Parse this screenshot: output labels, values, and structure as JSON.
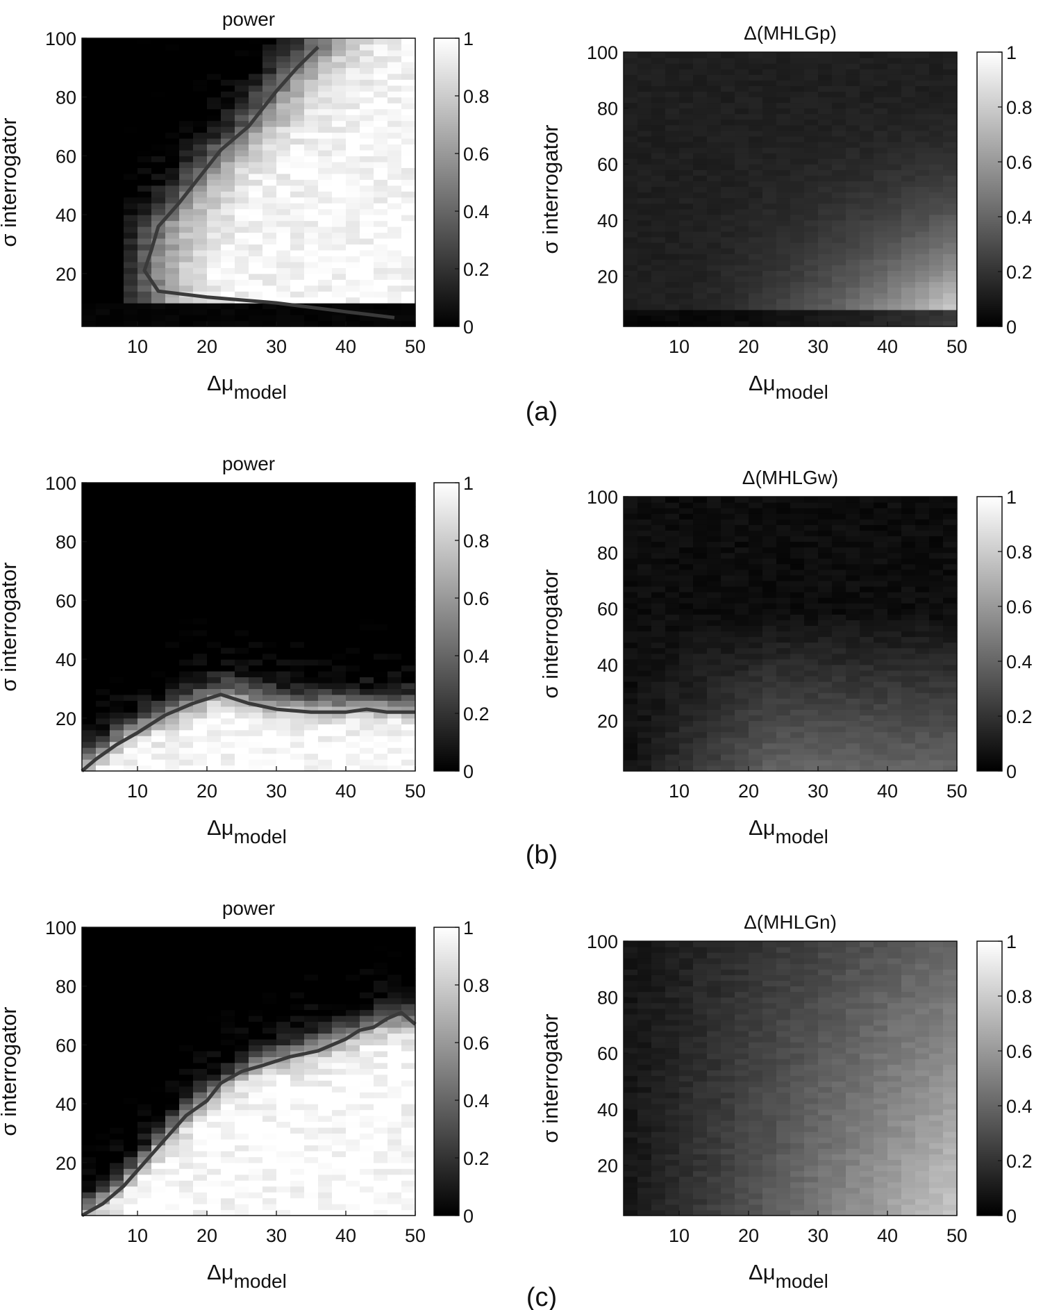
{
  "panel_labels": [
    "(a)",
    "(b)",
    "(c)"
  ],
  "chart_data": [
    {
      "type": "heatmap",
      "panel": "(a)",
      "title": "power",
      "xlabel": "Δμ model",
      "ylabel": "σ interrogator",
      "xlim": [
        2,
        50
      ],
      "ylim": [
        2,
        100
      ],
      "xticks": [
        10,
        20,
        30,
        40,
        50
      ],
      "yticks": [
        20,
        40,
        60,
        80,
        100
      ],
      "colorbar": {
        "range": [
          0,
          1
        ],
        "ticks": [
          0,
          0.2,
          0.4,
          0.6,
          0.8,
          1
        ]
      },
      "colormap": [
        "#000000",
        "#ffffff"
      ],
      "grid": false,
      "contour_level": 0.8,
      "contour": [
        [
          36,
          97
        ],
        [
          33,
          90
        ],
        [
          30,
          82
        ],
        [
          26,
          70
        ],
        [
          22,
          62
        ],
        [
          19,
          53
        ],
        [
          16,
          44
        ],
        [
          13,
          36
        ],
        [
          12,
          28
        ],
        [
          11,
          21
        ],
        [
          13,
          14
        ],
        [
          20,
          12
        ],
        [
          30,
          10
        ],
        [
          40,
          7
        ],
        [
          47,
          5
        ]
      ],
      "surface": "boundary",
      "boundary_points": [
        [
          48,
          4
        ],
        [
          45,
          5
        ],
        [
          40,
          6
        ],
        [
          35,
          7
        ],
        [
          30,
          8
        ],
        [
          25,
          10
        ],
        [
          20,
          11
        ],
        [
          15,
          13
        ],
        [
          12,
          15
        ]
      ],
      "noise": 0.08
    },
    {
      "type": "heatmap",
      "panel": "(a)",
      "title": "Δ(MHLGp)",
      "xlabel": "Δμ model",
      "ylabel": "σ interrogator",
      "xlim": [
        2,
        50
      ],
      "ylim": [
        2,
        100
      ],
      "xticks": [
        10,
        20,
        30,
        40,
        50
      ],
      "yticks": [
        20,
        40,
        60,
        80,
        100
      ],
      "colorbar": {
        "range": [
          0,
          1
        ],
        "ticks": [
          0,
          0.2,
          0.4,
          0.6,
          0.8,
          1
        ]
      },
      "colormap": [
        "#000000",
        "#ffffff"
      ],
      "grid": false,
      "surface": "mhlg_p",
      "noise": 0.02
    },
    {
      "type": "heatmap",
      "panel": "(b)",
      "title": "power",
      "xlabel": "Δμ model",
      "ylabel": "σ interrogator",
      "xlim": [
        2,
        50
      ],
      "ylim": [
        2,
        100
      ],
      "xticks": [
        10,
        20,
        30,
        40,
        50
      ],
      "yticks": [
        20,
        40,
        60,
        80,
        100
      ],
      "colorbar": {
        "range": [
          0,
          1
        ],
        "ticks": [
          0,
          0.2,
          0.4,
          0.6,
          0.8,
          1
        ]
      },
      "colormap": [
        "#000000",
        "#ffffff"
      ],
      "grid": false,
      "contour_level": 0.8,
      "contour": [
        [
          2,
          2
        ],
        [
          4,
          6
        ],
        [
          7,
          11
        ],
        [
          10,
          15
        ],
        [
          14,
          21
        ],
        [
          18,
          25
        ],
        [
          22,
          28
        ],
        [
          26,
          25
        ],
        [
          30,
          23
        ],
        [
          35,
          22
        ],
        [
          40,
          22
        ],
        [
          43,
          23
        ],
        [
          46,
          22
        ],
        [
          50,
          22
        ]
      ],
      "surface": "boundary",
      "boundary_points": [
        [
          2,
          4
        ],
        [
          6,
          12
        ],
        [
          12,
          20
        ],
        [
          18,
          26
        ],
        [
          22,
          30
        ],
        [
          28,
          27
        ],
        [
          35,
          25
        ],
        [
          42,
          25
        ],
        [
          50,
          25
        ]
      ],
      "noise": 0.1
    },
    {
      "type": "heatmap",
      "panel": "(b)",
      "title": "Δ(MHLGw)",
      "xlabel": "Δμ model",
      "ylabel": "σ interrogator",
      "xlim": [
        2,
        50
      ],
      "ylim": [
        2,
        100
      ],
      "xticks": [
        10,
        20,
        30,
        40,
        50
      ],
      "yticks": [
        20,
        40,
        60,
        80,
        100
      ],
      "colorbar": {
        "range": [
          0,
          1
        ],
        "ticks": [
          0,
          0.2,
          0.4,
          0.6,
          0.8,
          1
        ]
      },
      "colormap": [
        "#000000",
        "#ffffff"
      ],
      "grid": false,
      "surface": "mhlg_w",
      "noise": 0.03
    },
    {
      "type": "heatmap",
      "panel": "(c)",
      "title": "power",
      "xlabel": "Δμ model",
      "ylabel": "σ interrogator",
      "xlim": [
        2,
        50
      ],
      "ylim": [
        2,
        100
      ],
      "xticks": [
        10,
        20,
        30,
        40,
        50
      ],
      "yticks": [
        20,
        40,
        60,
        80,
        100
      ],
      "colorbar": {
        "range": [
          0,
          1
        ],
        "ticks": [
          0,
          0.2,
          0.4,
          0.6,
          0.8,
          1
        ]
      },
      "colormap": [
        "#000000",
        "#ffffff"
      ],
      "grid": false,
      "contour_level": 0.8,
      "contour": [
        [
          2,
          2
        ],
        [
          5,
          6
        ],
        [
          8,
          12
        ],
        [
          11,
          20
        ],
        [
          14,
          28
        ],
        [
          17,
          36
        ],
        [
          20,
          41
        ],
        [
          22,
          47
        ],
        [
          25,
          51
        ],
        [
          28,
          53
        ],
        [
          32,
          56
        ],
        [
          36,
          58
        ],
        [
          40,
          62
        ],
        [
          42,
          65
        ],
        [
          44,
          66
        ],
        [
          46,
          69
        ],
        [
          48,
          71
        ],
        [
          50,
          67
        ]
      ],
      "surface": "boundary",
      "boundary_points": [
        [
          2,
          4
        ],
        [
          8,
          14
        ],
        [
          14,
          30
        ],
        [
          20,
          43
        ],
        [
          26,
          53
        ],
        [
          32,
          58
        ],
        [
          38,
          62
        ],
        [
          44,
          68
        ],
        [
          50,
          70
        ]
      ],
      "noise": 0.1
    },
    {
      "type": "heatmap",
      "panel": "(c)",
      "title": "Δ(MHLGn)",
      "xlabel": "Δμ model",
      "ylabel": "σ interrogator",
      "xlim": [
        2,
        50
      ],
      "ylim": [
        2,
        100
      ],
      "xticks": [
        10,
        20,
        30,
        40,
        50
      ],
      "yticks": [
        20,
        40,
        60,
        80,
        100
      ],
      "colorbar": {
        "range": [
          0,
          1
        ],
        "ticks": [
          0,
          0.2,
          0.4,
          0.6,
          0.8,
          1
        ]
      },
      "colormap": [
        "#000000",
        "#ffffff"
      ],
      "grid": false,
      "surface": "mhlg_n",
      "noise": 0.03
    }
  ]
}
